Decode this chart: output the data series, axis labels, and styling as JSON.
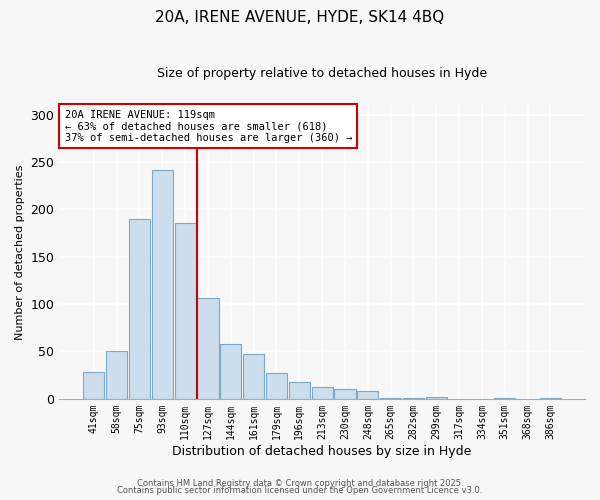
{
  "title": "20A, IRENE AVENUE, HYDE, SK14 4BQ",
  "subtitle": "Size of property relative to detached houses in Hyde",
  "xlabel": "Distribution of detached houses by size in Hyde",
  "ylabel": "Number of detached properties",
  "bar_labels": [
    "41sqm",
    "58sqm",
    "75sqm",
    "93sqm",
    "110sqm",
    "127sqm",
    "144sqm",
    "161sqm",
    "179sqm",
    "196sqm",
    "213sqm",
    "230sqm",
    "248sqm",
    "265sqm",
    "282sqm",
    "299sqm",
    "317sqm",
    "334sqm",
    "351sqm",
    "368sqm",
    "386sqm"
  ],
  "bar_values": [
    28,
    50,
    190,
    242,
    186,
    106,
    58,
    47,
    27,
    18,
    12,
    10,
    8,
    1,
    1,
    2,
    0,
    0,
    1,
    0,
    1
  ],
  "bar_color": "#ccdded",
  "bar_edge_color": "#7aaac8",
  "vline_color": "#cc0000",
  "ylim": [
    0,
    310
  ],
  "yticks": [
    0,
    50,
    100,
    150,
    200,
    250,
    300
  ],
  "annotation_title": "20A IRENE AVENUE: 119sqm",
  "annotation_line1": "← 63% of detached houses are smaller (618)",
  "annotation_line2": "37% of semi-detached houses are larger (360) →",
  "footnote1": "Contains HM Land Registry data © Crown copyright and database right 2025.",
  "footnote2": "Contains public sector information licensed under the Open Government Licence v3.0.",
  "background_color": "#f7f7f7"
}
